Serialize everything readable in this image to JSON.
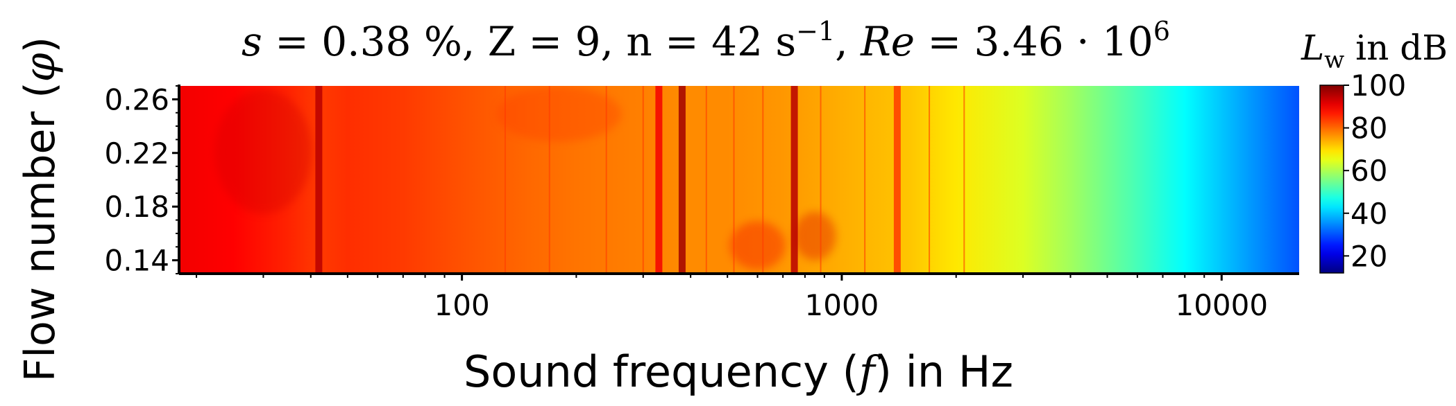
{
  "chart_data": {
    "type": "heatmap",
    "title": "s = 0.38 %,  Z = 9,  n = 42 s⁻¹,  Re = 3.46 · 10⁶",
    "title_parts": {
      "s_var": "s",
      "s_val": " = 0.38 %,  Z = 9,  n = 42 s",
      "n_exp": "−1",
      "sep": ",  ",
      "re_var": "Re",
      "re_val": " = 3.46 · 10",
      "re_exp": "6"
    },
    "xlabel": {
      "before": "Sound frequency (",
      "var": "f",
      "after": ") in Hz"
    },
    "ylabel": {
      "before": "Flow number (",
      "var": "φ",
      "after": ")"
    },
    "colorbar_label": {
      "var": "L",
      "sub": "w",
      "after": " in dB"
    },
    "x_scale": "log",
    "xlim": [
      18,
      16000
    ],
    "ylim": [
      0.13,
      0.27
    ],
    "x_ticks": [
      {
        "value": 100,
        "label": "100"
      },
      {
        "value": 1000,
        "label": "1000"
      },
      {
        "value": 10000,
        "label": "10000"
      }
    ],
    "y_ticks": [
      {
        "value": 0.14,
        "label": "0.14"
      },
      {
        "value": 0.18,
        "label": "0.18"
      },
      {
        "value": 0.22,
        "label": "0.22"
      },
      {
        "value": 0.26,
        "label": "0.26"
      }
    ],
    "colorbar": {
      "range": [
        12,
        100
      ],
      "ticks": [
        {
          "value": 100,
          "label": "100"
        },
        {
          "value": 80,
          "label": "80"
        },
        {
          "value": 60,
          "label": "60"
        },
        {
          "value": 40,
          "label": "40"
        },
        {
          "value": 20,
          "label": "20"
        }
      ],
      "colormap": "jet"
    },
    "level_profile": {
      "frequency_hz": [
        18,
        25,
        35,
        42,
        50,
        70,
        100,
        150,
        200,
        300,
        380,
        500,
        700,
        1000,
        1500,
        2000,
        3000,
        4000,
        6000,
        8000,
        12000,
        16000
      ],
      "level_db": [
        90,
        89,
        86,
        84,
        85,
        84,
        82,
        80,
        79,
        78,
        77,
        77,
        76,
        74,
        72,
        69,
        64,
        59,
        51,
        45,
        36,
        30
      ]
    },
    "tonal_lines": [
      {
        "frequency_hz": 42,
        "level_db": 95
      },
      {
        "frequency_hz": 330,
        "level_db": 90
      },
      {
        "frequency_hz": 380,
        "level_db": 97
      },
      {
        "frequency_hz": 750,
        "level_db": 95
      },
      {
        "frequency_hz": 1400,
        "level_db": 84
      }
    ],
    "grid": false,
    "legend": "colorbar-right"
  }
}
